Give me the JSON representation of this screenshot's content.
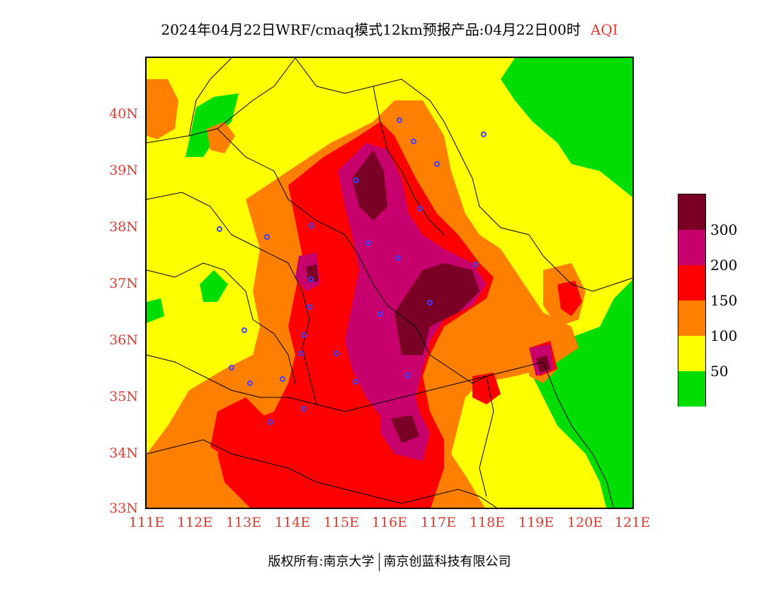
{
  "title": {
    "main": "2024年04月22日WRF/cmaq模式12km预报产品:04月22日00时",
    "variable": "AQI"
  },
  "axes": {
    "lat_labels": [
      "40N",
      "39N",
      "38N",
      "37N",
      "36N",
      "35N",
      "34N",
      "33N"
    ],
    "lon_labels": [
      "111E",
      "112E",
      "113E",
      "114E",
      "115E",
      "116E",
      "117E",
      "118E",
      "119E",
      "120E",
      "121E"
    ]
  },
  "legend": {
    "labels": [
      "300",
      "200",
      "150",
      "100",
      "50"
    ],
    "colors": [
      "#7a0026",
      "#c8006e",
      "#ff0000",
      "#ff7f00",
      "#ffff00",
      "#00dd00"
    ]
  },
  "footer": {
    "left": "版权所有:南京大学",
    "right": "南京创蓝科技有限公司"
  },
  "colors": {
    "good": "#00dd00",
    "moderate": "#ffff00",
    "usg": "#ff7f00",
    "unhealthy": "#ff0000",
    "very_unhealthy": "#c8006e",
    "hazardous": "#7a0026",
    "label_red": "#e03a30",
    "station_marker": "#4040ff"
  }
}
